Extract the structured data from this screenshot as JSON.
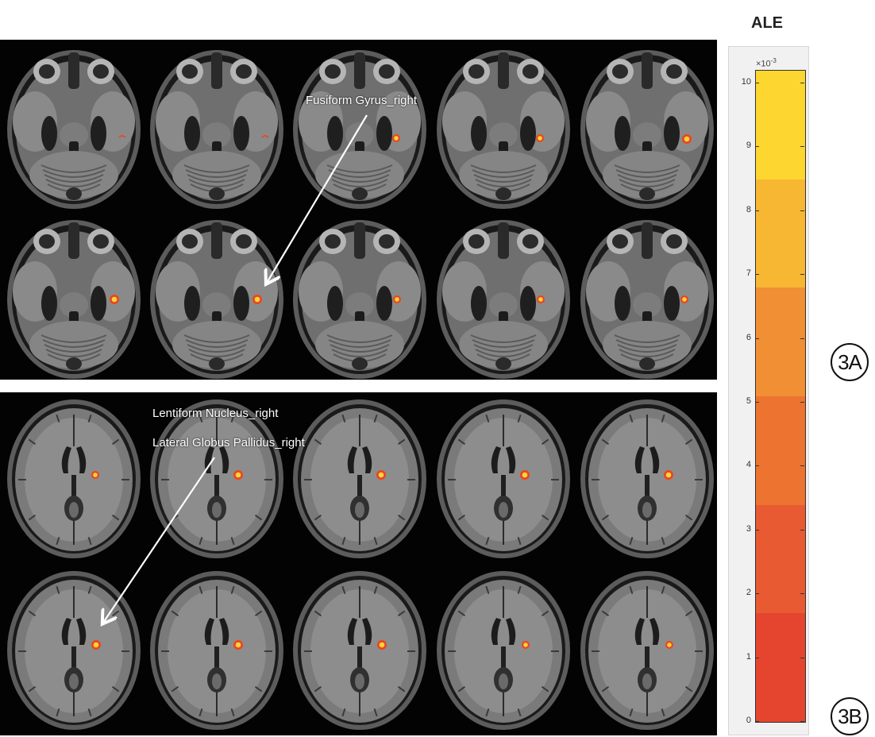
{
  "colorbar": {
    "title": "ALE",
    "exponent_base": "×10",
    "exponent_power": "-3",
    "ticks": [
      "0",
      "1",
      "2",
      "3",
      "4",
      "5",
      "6",
      "7",
      "8",
      "9",
      "10"
    ],
    "min": 0,
    "max": 10.2,
    "segments": [
      {
        "from": 0,
        "to": 1.7,
        "color": "#e5452f"
      },
      {
        "from": 1.7,
        "to": 3.4,
        "color": "#e85a32"
      },
      {
        "from": 3.4,
        "to": 5.1,
        "color": "#ec7330"
      },
      {
        "from": 5.1,
        "to": 6.8,
        "color": "#f08f33"
      },
      {
        "from": 6.8,
        "to": 8.5,
        "color": "#f7b732"
      },
      {
        "from": 8.5,
        "to": 10.2,
        "color": "#fdd730"
      }
    ]
  },
  "panel_a": {
    "annotation": "Fusiform Gyrus_right",
    "label": "3A"
  },
  "panel_b": {
    "annotation_line1": "Lentiform Nucleus_right",
    "annotation_line2": "Lateral Globus Pallidus_right",
    "label": "3B"
  },
  "colors": {
    "background": "#030303",
    "activation_hot": "#ffd23a",
    "activation_outer": "#e8471f"
  }
}
